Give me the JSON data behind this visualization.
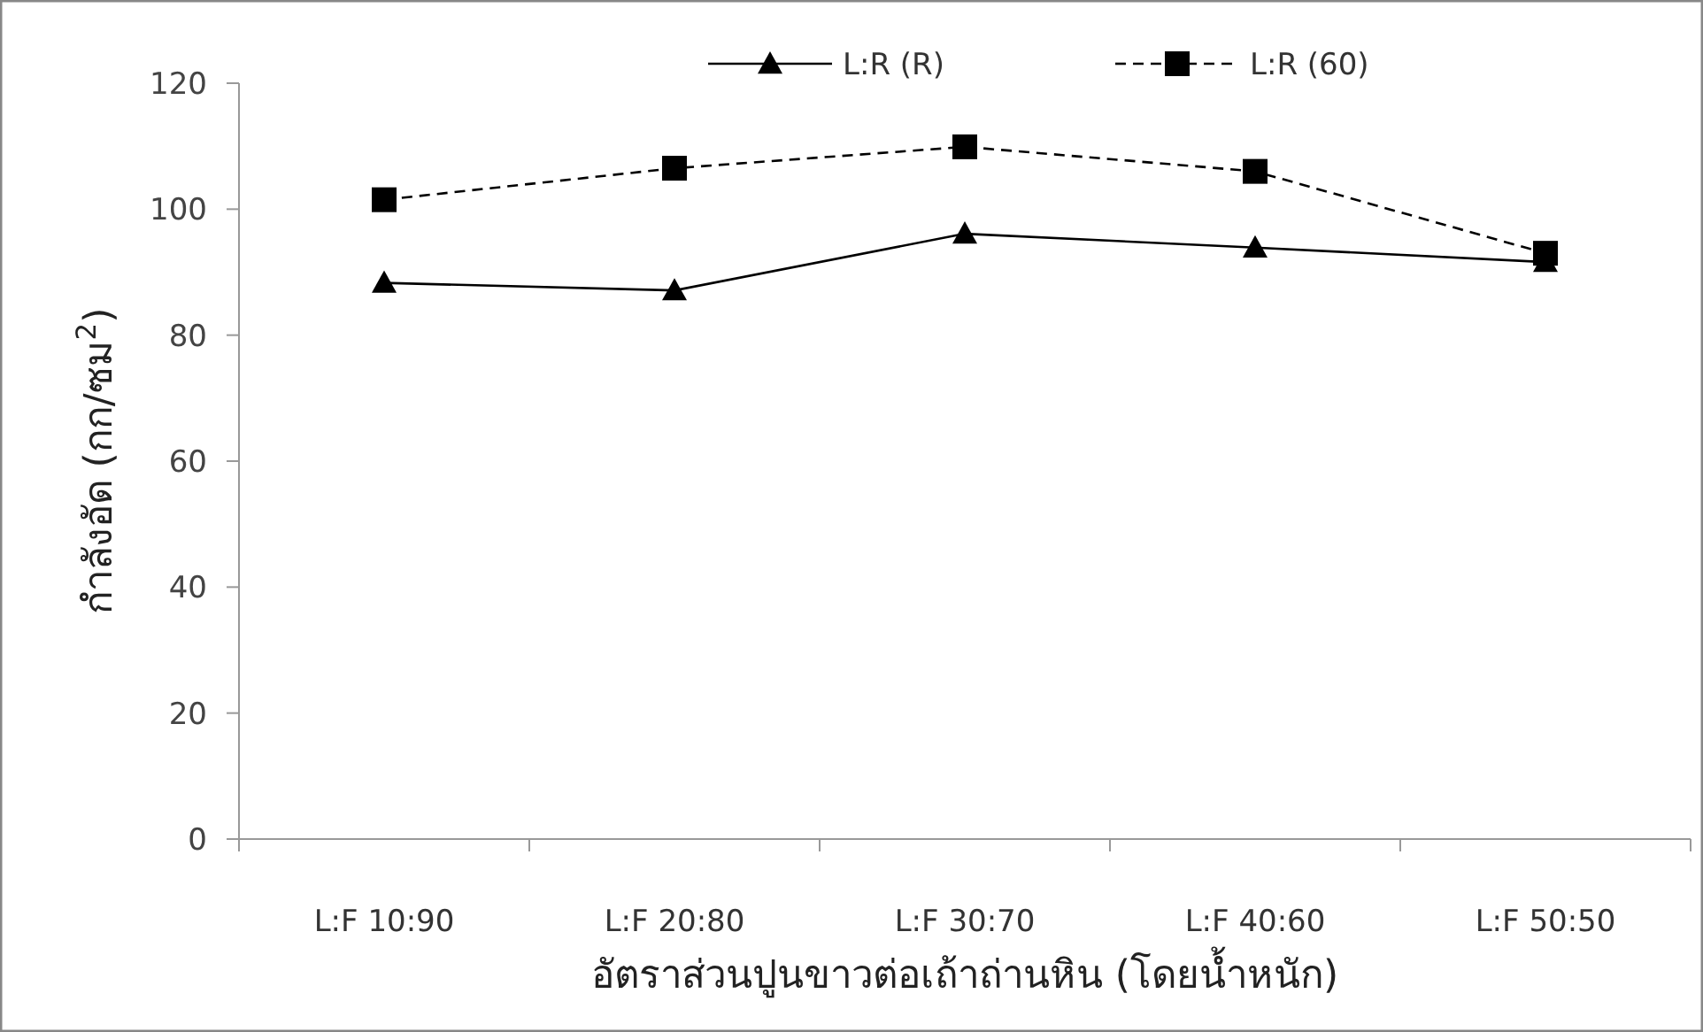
{
  "chart_data": {
    "type": "line",
    "xlabel": "อัตราส่วนปูนขาวต่อเถ้าถ่านหิน (โดยน้ำหนัก)",
    "ylabel": "กำลังอัด (กก/ซม$^{2}$)",
    "categories": [
      "L:F 10:90",
      "L:F 20:80",
      "L:F 30:70",
      "L:F 40:60",
      "L:F 50:50"
    ],
    "series": [
      {
        "name": "L:R (R)",
        "color": "#000000",
        "marker": "triangle",
        "line_style": "solid",
        "values": [
          88.3,
          87.1,
          96.1,
          93.9,
          91.6
        ]
      },
      {
        "name": "L:R (60)",
        "color": "#000000",
        "marker": "square",
        "line_style": "dashed",
        "values": [
          101.5,
          106.5,
          109.9,
          106.0,
          93.0
        ]
      }
    ],
    "ylim": [
      0,
      120
    ],
    "yticks": [
      0,
      20,
      40,
      60,
      80,
      100,
      120
    ],
    "grid": false,
    "legend": "top"
  }
}
